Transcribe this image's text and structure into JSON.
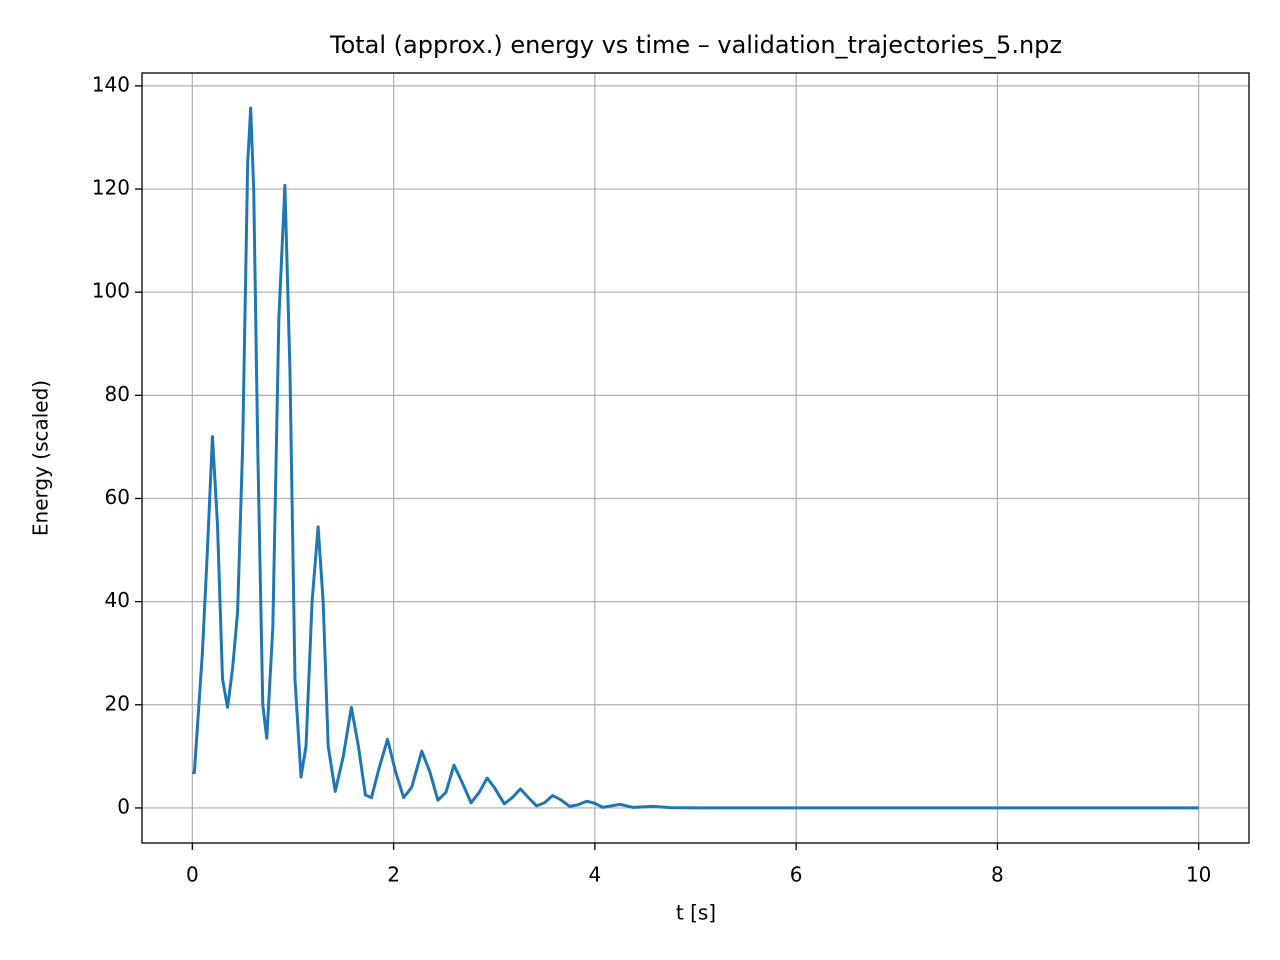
{
  "chart_data": {
    "type": "line",
    "title": "Total (approx.) energy vs time – validation_trajectories_5.npz",
    "x_label": "t [s]",
    "y_label": "Energy (scaled)",
    "x": [
      0,
      0.02,
      0.1,
      0.15,
      0.2,
      0.25,
      0.3,
      0.35,
      0.4,
      0.45,
      0.5,
      0.55,
      0.58,
      0.61,
      0.65,
      0.7,
      0.74,
      0.8,
      0.86,
      0.92,
      0.97,
      1.02,
      1.08,
      1.13,
      1.19,
      1.25,
      1.3,
      1.35,
      1.42,
      1.5,
      1.58,
      1.65,
      1.72,
      1.78,
      1.86,
      1.94,
      2.02,
      2.1,
      2.18,
      2.28,
      2.36,
      2.44,
      2.52,
      2.6,
      2.68,
      2.77,
      2.85,
      2.93,
      3.0,
      3.1,
      3.18,
      3.26,
      3.34,
      3.42,
      3.5,
      3.58,
      3.66,
      3.75,
      3.83,
      3.92,
      4.0,
      4.08,
      4.25,
      4.38,
      4.58,
      4.75,
      5,
      10
    ],
    "values": [
      7,
      6.8,
      30,
      50,
      72,
      55,
      25,
      19.5,
      27,
      38,
      70,
      125,
      135.7,
      120,
      70,
      20,
      13.5,
      35,
      95,
      120.7,
      85,
      25,
      6,
      12,
      40,
      54.5,
      40,
      12,
      3.2,
      10,
      19.5,
      12,
      2.5,
      2,
      8,
      13.3,
      7,
      2,
      4,
      11,
      7,
      1.5,
      3,
      8.3,
      5,
      1,
      3,
      5.8,
      4,
      0.8,
      2,
      3.7,
      2,
      0.4,
      1,
      2.4,
      1.6,
      0.3,
      0.6,
      1.3,
      0.9,
      0.1,
      0.7,
      0.1,
      0.3,
      0.05,
      0.02,
      0
    ],
    "color": "#1f77b4",
    "xlim": [
      -0.5,
      10.5
    ],
    "xticks": [
      0,
      2,
      4,
      6,
      8,
      10
    ],
    "ylim": [
      -6.8,
      142.5
    ],
    "yticks": [
      0,
      20,
      40,
      60,
      80,
      100,
      120,
      140
    ],
    "grid": true
  }
}
